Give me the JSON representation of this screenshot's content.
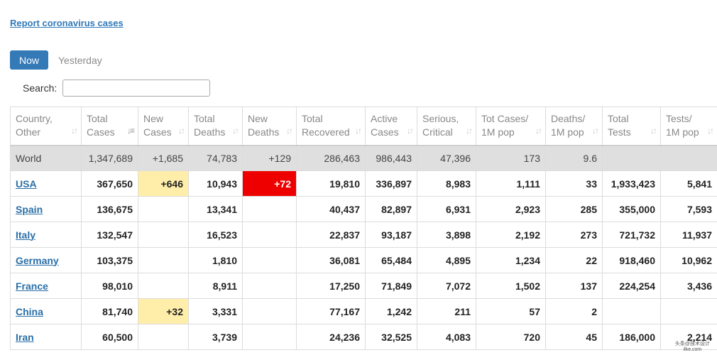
{
  "header": {
    "report_link": "Report coronavirus cases"
  },
  "tabs": {
    "now": "Now",
    "yesterday": "Yesterday"
  },
  "search": {
    "label": "Search:",
    "value": "",
    "placeholder": ""
  },
  "table": {
    "columns": [
      {
        "line1": "Country,",
        "line2": "Other",
        "sort": "both"
      },
      {
        "line1": "Total",
        "line2": "Cases",
        "sort": "desc"
      },
      {
        "line1": "New",
        "line2": "Cases",
        "sort": "both"
      },
      {
        "line1": "Total",
        "line2": "Deaths",
        "sort": "both"
      },
      {
        "line1": "New",
        "line2": "Deaths",
        "sort": "both"
      },
      {
        "line1": "Total",
        "line2": "Recovered",
        "sort": "both"
      },
      {
        "line1": "Active",
        "line2": "Cases",
        "sort": "both"
      },
      {
        "line1": "Serious,",
        "line2": "Critical",
        "sort": "both"
      },
      {
        "line1": "Tot Cases/",
        "line2": "1M pop",
        "sort": "both"
      },
      {
        "line1": "Deaths/",
        "line2": "1M pop",
        "sort": "both"
      },
      {
        "line1": "Total",
        "line2": "Tests",
        "sort": "both"
      },
      {
        "line1": "Tests/",
        "line2": "1M pop",
        "sort": "both"
      }
    ],
    "world": [
      "World",
      "1,347,689",
      "+1,685",
      "74,783",
      "+129",
      "286,463",
      "986,443",
      "47,396",
      "173",
      "9.6",
      "",
      ""
    ],
    "rows": [
      [
        "USA",
        "367,650",
        "+646",
        "10,943",
        "+72",
        "19,810",
        "336,897",
        "8,983",
        "1,111",
        "33",
        "1,933,423",
        "5,841"
      ],
      [
        "Spain",
        "136,675",
        "",
        "13,341",
        "",
        "40,437",
        "82,897",
        "6,931",
        "2,923",
        "285",
        "355,000",
        "7,593"
      ],
      [
        "Italy",
        "132,547",
        "",
        "16,523",
        "",
        "22,837",
        "93,187",
        "3,898",
        "2,192",
        "273",
        "721,732",
        "11,937"
      ],
      [
        "Germany",
        "103,375",
        "",
        "1,810",
        "",
        "36,081",
        "65,484",
        "4,895",
        "1,234",
        "22",
        "918,460",
        "10,962"
      ],
      [
        "France",
        "98,010",
        "",
        "8,911",
        "",
        "17,250",
        "71,849",
        "7,072",
        "1,502",
        "137",
        "224,254",
        "3,436"
      ],
      [
        "China",
        "81,740",
        "+32",
        "3,331",
        "",
        "77,167",
        "1,242",
        "211",
        "57",
        "2",
        "",
        ""
      ],
      [
        "Iran",
        "60,500",
        "",
        "3,739",
        "",
        "24,236",
        "32,525",
        "4,083",
        "720",
        "45",
        "186,000",
        "2,214"
      ]
    ],
    "colors": {
      "new_cases_highlight": "#ffeeaa",
      "new_deaths_highlight": "#ee0000",
      "world_row": "#dfdfdf",
      "link": "#2a6fa8"
    }
  },
  "watermark": {
    "line1": "头条@技术设计",
    "line2": "ilke.com"
  }
}
